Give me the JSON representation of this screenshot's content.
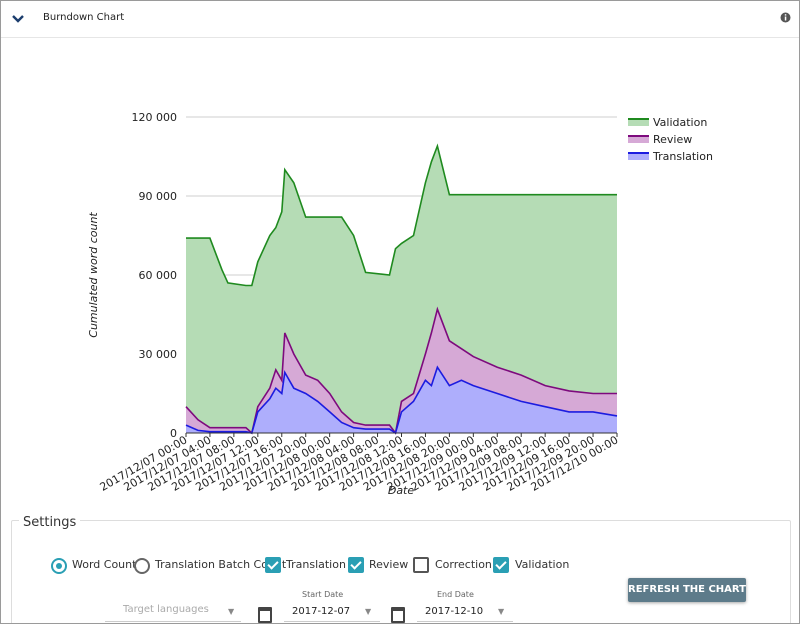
{
  "header": {
    "title": "Burndown Chart"
  },
  "chart_data": {
    "type": "area",
    "x_label": "Date",
    "y_label": "Cumulated word count",
    "x": [
      "2017/12/07 00:00",
      "2017/12/07 02:00",
      "2017/12/07 04:00",
      "2017/12/07 06:00",
      "2017/12/07 07:00",
      "2017/12/07 10:00",
      "2017/12/07 11:00",
      "2017/12/07 12:00",
      "2017/12/07 14:00",
      "2017/12/07 15:00",
      "2017/12/07 16:00",
      "2017/12/07 16:30",
      "2017/12/07 18:00",
      "2017/12/07 20:00",
      "2017/12/07 22:00",
      "2017/12/08 00:00",
      "2017/12/08 02:00",
      "2017/12/08 04:00",
      "2017/12/08 06:00",
      "2017/12/08 10:00",
      "2017/12/08 11:00",
      "2017/12/08 12:00",
      "2017/12/08 14:00",
      "2017/12/08 16:00",
      "2017/12/08 17:00",
      "2017/12/08 18:00",
      "2017/12/08 20:00",
      "2017/12/08 22:00",
      "2017/12/09 00:00",
      "2017/12/09 04:00",
      "2017/12/09 08:00",
      "2017/12/09 12:00",
      "2017/12/09 16:00",
      "2017/12/09 20:00",
      "2017/12/10 00:00"
    ],
    "series": [
      {
        "name": "Validation",
        "color": "#1f8a1f",
        "fill": "#b5dcb5",
        "values": [
          74000,
          74000,
          74000,
          62000,
          57000,
          56000,
          56000,
          65000,
          75000,
          78000,
          84000,
          100000,
          95000,
          82000,
          82000,
          82000,
          82000,
          75000,
          61000,
          60000,
          70000,
          72000,
          75000,
          95000,
          103000,
          109000,
          90500,
          90500,
          90500,
          90500,
          90500,
          90500,
          90500,
          90500,
          90500
        ]
      },
      {
        "name": "Review",
        "color": "#7d0a7d",
        "fill": "#d6a9d6",
        "values": [
          10000,
          5000,
          2000,
          2000,
          2000,
          2000,
          0,
          10000,
          17000,
          24000,
          20000,
          38000,
          30000,
          22000,
          20000,
          15000,
          8000,
          4000,
          3000,
          3000,
          0,
          12000,
          15000,
          30000,
          38000,
          47000,
          35000,
          32000,
          29000,
          25000,
          22000,
          18000,
          16000,
          15000,
          15000
        ]
      },
      {
        "name": "Translation",
        "color": "#1c1ce0",
        "fill": "#aeaefc",
        "values": [
          3000,
          1000,
          500,
          500,
          500,
          500,
          0,
          8000,
          13000,
          17000,
          15000,
          23000,
          17000,
          15000,
          12000,
          8000,
          4000,
          2000,
          1500,
          1500,
          0,
          8000,
          12000,
          20000,
          18000,
          25000,
          18000,
          20000,
          18000,
          15000,
          12000,
          10000,
          8000,
          8000,
          6500
        ]
      }
    ],
    "xlim": [
      "2017/12/07 00:00",
      "2017/12/10 00:00"
    ],
    "xticks": [
      "2017/12/07 00:00",
      "2017/12/07 04:00",
      "2017/12/07 08:00",
      "2017/12/07 12:00",
      "2017/12/07 16:00",
      "2017/12/07 20:00",
      "2017/12/08 00:00",
      "2017/12/08 04:00",
      "2017/12/08 08:00",
      "2017/12/08 12:00",
      "2017/12/08 16:00",
      "2017/12/08 20:00",
      "2017/12/09 00:00",
      "2017/12/09 04:00",
      "2017/12/09 08:00",
      "2017/12/09 12:00",
      "2017/12/09 16:00",
      "2017/12/09 20:00",
      "2017/12/10 00:00"
    ],
    "ylim": [
      0,
      120000
    ],
    "yticks": [
      0,
      {
        "value": 30000,
        "label": "30 000"
      },
      {
        "value": 60000,
        "label": "60 000"
      },
      {
        "value": 90000,
        "label": "90 000"
      },
      {
        "value": 120000,
        "label": "120 000"
      }
    ],
    "grid": true,
    "legend": "right"
  },
  "settings": {
    "title": "Settings",
    "radios": [
      {
        "label": "Word Count",
        "checked": true
      },
      {
        "label": "Translation Batch Count",
        "checked": false
      }
    ],
    "checkboxes": [
      {
        "label": "Translation",
        "checked": true
      },
      {
        "label": "Review",
        "checked": true
      },
      {
        "label": "Correction",
        "checked": false
      },
      {
        "label": "Validation",
        "checked": true
      }
    ],
    "target_languages": "Target languages",
    "start_date": {
      "label": "Start Date",
      "value": "2017-12-07"
    },
    "end_date": {
      "label": "End Date",
      "value": "2017-12-10"
    },
    "button": "REFRESH THE CHART"
  }
}
